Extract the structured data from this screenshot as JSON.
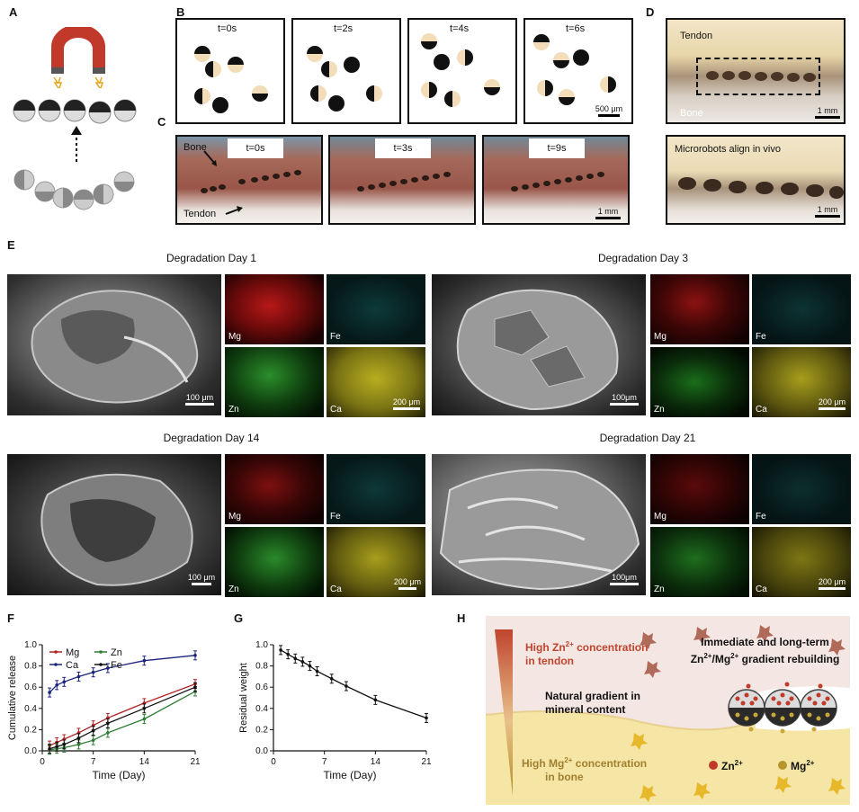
{
  "panels": {
    "A": "A",
    "B": "B",
    "C": "C",
    "D": "D",
    "E": "E",
    "F": "F",
    "G": "G",
    "H": "H"
  },
  "panelB": {
    "frames": [
      "t=0s",
      "t=2s",
      "t=4s",
      "t=6s"
    ],
    "scale": "500 μm"
  },
  "panelC": {
    "frames": [
      "t=0s",
      "t=3s",
      "t=9s"
    ],
    "bone_label": "Bone",
    "tendon_label": "Tendon",
    "scale": "1 mm"
  },
  "panelD": {
    "tendon_label": "Tendon",
    "bone_label": "Bone",
    "caption": "Microrobots align in vivo",
    "scale_top": "1 mm",
    "scale_bottom": "1 mm"
  },
  "panelE": {
    "groups": [
      {
        "title": "Degradation Day 1",
        "sem_scale": "100 μm",
        "map_scale": "200 μm"
      },
      {
        "title": "Degradation Day 3",
        "sem_scale": "100μm",
        "map_scale": "200 μm"
      },
      {
        "title": "Degradation Day 14",
        "sem_scale": "100 μm",
        "map_scale": "200 μm"
      },
      {
        "title": "Degradation Day 21",
        "sem_scale": "100μm",
        "map_scale": "200 μm"
      }
    ],
    "elements": [
      "Mg",
      "Fe",
      "Zn",
      "Ca"
    ],
    "colors": {
      "Mg": "#e0201c",
      "Fe": "#37c6c6",
      "Zn": "#2fb52f",
      "Ca": "#d8cf2a"
    }
  },
  "chart_data": [
    {
      "type": "line",
      "panel": "F",
      "xlabel": "Time (Day)",
      "ylabel": "Cumulative release",
      "xlim": [
        0,
        21
      ],
      "ylim": [
        0,
        1.0
      ],
      "xticks": [
        "0",
        "7",
        "14",
        "21"
      ],
      "yticks": [
        "0.0",
        "0.2",
        "0.4",
        "0.6",
        "0.8",
        "1.0"
      ],
      "legend": [
        "Mg",
        "Zn",
        "Ca",
        "Fe"
      ],
      "series": [
        {
          "name": "Mg",
          "color": "#b22222",
          "x": [
            1,
            2,
            3,
            5,
            7,
            9,
            14,
            21
          ],
          "y": [
            0.05,
            0.08,
            0.11,
            0.17,
            0.24,
            0.31,
            0.45,
            0.63
          ]
        },
        {
          "name": "Zn",
          "color": "#2e7d32",
          "x": [
            1,
            2,
            3,
            5,
            7,
            9,
            14,
            21
          ],
          "y": [
            0.01,
            0.02,
            0.03,
            0.06,
            0.1,
            0.17,
            0.3,
            0.56
          ]
        },
        {
          "name": "Ca",
          "color": "#1a237e",
          "x": [
            1,
            2,
            3,
            5,
            7,
            9,
            14,
            21
          ],
          "y": [
            0.55,
            0.62,
            0.65,
            0.7,
            0.74,
            0.78,
            0.85,
            0.9
          ]
        },
        {
          "name": "Fe",
          "color": "#111111",
          "x": [
            1,
            2,
            3,
            5,
            7,
            9,
            14,
            21
          ],
          "y": [
            0.02,
            0.04,
            0.06,
            0.12,
            0.19,
            0.26,
            0.4,
            0.6
          ]
        }
      ]
    },
    {
      "type": "line",
      "panel": "G",
      "xlabel": "Time (Day)",
      "ylabel": "Residual weight",
      "xlim": [
        0,
        21
      ],
      "ylim": [
        0,
        1.0
      ],
      "xticks": [
        "0",
        "7",
        "14",
        "21"
      ],
      "yticks": [
        "0.0",
        "0.2",
        "0.4",
        "0.6",
        "0.8",
        "1.0"
      ],
      "series": [
        {
          "name": "",
          "color": "#111111",
          "x": [
            1,
            2,
            3,
            4,
            5,
            6,
            8,
            10,
            14,
            21
          ],
          "y": [
            0.95,
            0.91,
            0.87,
            0.84,
            0.8,
            0.75,
            0.68,
            0.61,
            0.48,
            0.31
          ]
        }
      ]
    }
  ],
  "panelH": {
    "zn_high": "High Zn",
    "zn_high_sup": "2+",
    "zn_high_tail": " concentration",
    "zn_high_line2": "in tendon",
    "natural_1": "Natural gradient in",
    "natural_2": "mineral content",
    "mg_high": "High Mg",
    "mg_high_sup": "2+",
    "mg_high_tail": " concentration",
    "mg_high_line2": "in bone",
    "right_1": "Immediate and long-term",
    "right_2a": "Zn",
    "right_2b": "2+",
    "right_2c": "/Mg",
    "right_2d": "2+",
    "right_2e": " gradient rebuilding",
    "legend_zn": "Zn",
    "legend_zn_sup": "2+",
    "legend_mg": "Mg",
    "legend_mg_sup": "2+",
    "colors": {
      "zn": "#c0392b",
      "mg": "#b8962e"
    }
  }
}
